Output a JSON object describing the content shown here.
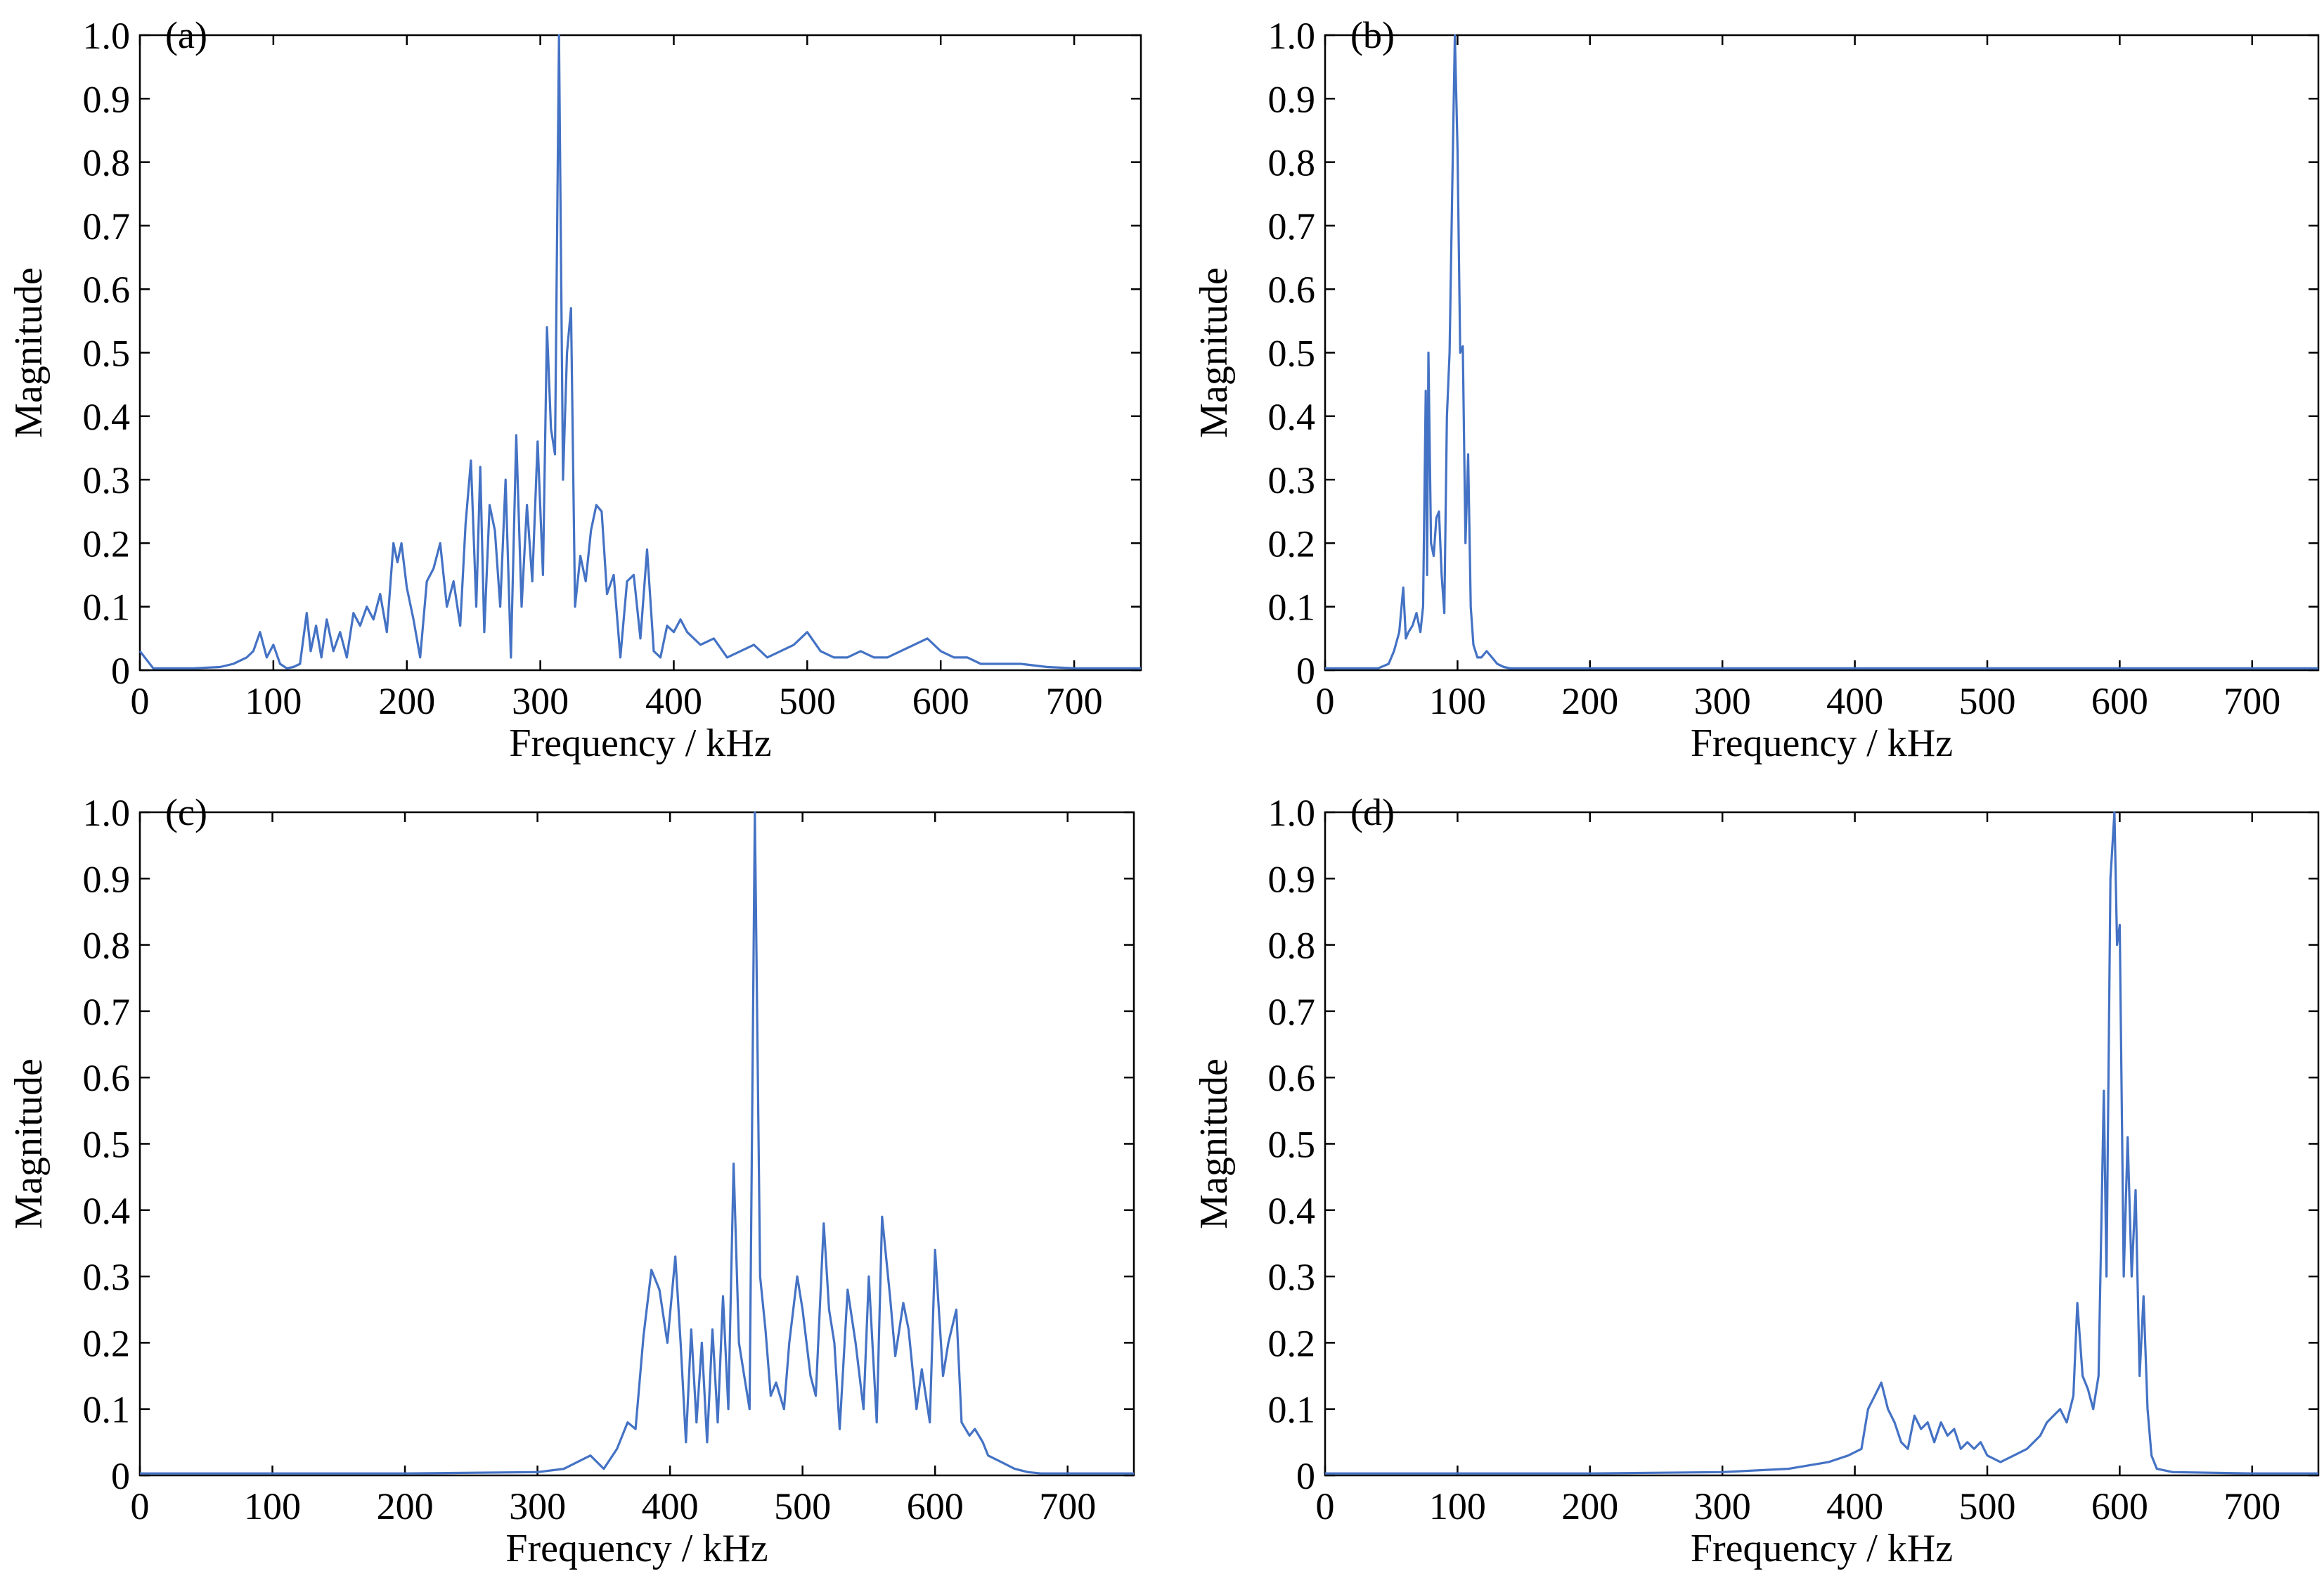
{
  "chart_data": [
    {
      "type": "line",
      "panel_label": "(a)",
      "xlabel": "Frequency / kHz",
      "ylabel": "Magnitude",
      "xlim": [
        0,
        750
      ],
      "ylim": [
        0,
        1.0
      ],
      "x_ticks": [
        0,
        100,
        200,
        300,
        400,
        500,
        600,
        700
      ],
      "y_ticks": [
        "0",
        "0.1",
        "0.2",
        "0.3",
        "0.4",
        "0.5",
        "0.6",
        "0.7",
        "0.8",
        "0.9",
        "1.0"
      ],
      "grid": false,
      "line_color": "#4472c4",
      "x": [
        0,
        10,
        20,
        40,
        60,
        70,
        80,
        85,
        90,
        95,
        100,
        105,
        110,
        115,
        120,
        125,
        128,
        132,
        136,
        140,
        145,
        150,
        155,
        160,
        165,
        170,
        175,
        180,
        185,
        190,
        193,
        196,
        200,
        205,
        210,
        215,
        220,
        225,
        230,
        235,
        240,
        244,
        248,
        252,
        255,
        258,
        262,
        266,
        270,
        274,
        278,
        282,
        286,
        290,
        294,
        298,
        302,
        305,
        308,
        311,
        314,
        317,
        320,
        323,
        326,
        330,
        334,
        338,
        342,
        346,
        350,
        355,
        360,
        365,
        370,
        375,
        380,
        385,
        390,
        395,
        400,
        405,
        410,
        420,
        430,
        440,
        450,
        460,
        470,
        480,
        490,
        500,
        510,
        520,
        530,
        540,
        550,
        560,
        570,
        580,
        590,
        600,
        610,
        620,
        630,
        640,
        660,
        680,
        700,
        720,
        750
      ],
      "y": [
        0.03,
        0.003,
        0.003,
        0.003,
        0.005,
        0.01,
        0.02,
        0.03,
        0.06,
        0.02,
        0.04,
        0.01,
        0.003,
        0.005,
        0.01,
        0.09,
        0.03,
        0.07,
        0.02,
        0.08,
        0.03,
        0.06,
        0.02,
        0.09,
        0.07,
        0.1,
        0.08,
        0.12,
        0.06,
        0.2,
        0.17,
        0.2,
        0.13,
        0.08,
        0.02,
        0.14,
        0.16,
        0.2,
        0.1,
        0.14,
        0.07,
        0.23,
        0.33,
        0.1,
        0.32,
        0.06,
        0.26,
        0.22,
        0.1,
        0.3,
        0.02,
        0.37,
        0.1,
        0.26,
        0.14,
        0.36,
        0.15,
        0.54,
        0.38,
        0.34,
        1.0,
        0.3,
        0.5,
        0.57,
        0.1,
        0.18,
        0.14,
        0.22,
        0.26,
        0.25,
        0.12,
        0.15,
        0.02,
        0.14,
        0.15,
        0.05,
        0.19,
        0.03,
        0.02,
        0.07,
        0.06,
        0.08,
        0.06,
        0.04,
        0.05,
        0.02,
        0.03,
        0.04,
        0.02,
        0.03,
        0.04,
        0.06,
        0.03,
        0.02,
        0.02,
        0.03,
        0.02,
        0.02,
        0.03,
        0.04,
        0.05,
        0.03,
        0.02,
        0.02,
        0.01,
        0.01,
        0.01,
        0.005,
        0.003,
        0.003,
        0.003
      ]
    },
    {
      "type": "line",
      "panel_label": "(b)",
      "xlabel": "Frequency / kHz",
      "ylabel": "Magnitude",
      "xlim": [
        0,
        750
      ],
      "ylim": [
        0,
        1.0
      ],
      "x_ticks": [
        0,
        100,
        200,
        300,
        400,
        500,
        600,
        700
      ],
      "y_ticks": [
        "0",
        "0.1",
        "0.2",
        "0.3",
        "0.4",
        "0.5",
        "0.6",
        "0.7",
        "0.8",
        "0.9",
        "1.0"
      ],
      "grid": false,
      "line_color": "#4472c4",
      "x": [
        0,
        40,
        48,
        52,
        56,
        59,
        61,
        63,
        66,
        69,
        72,
        74,
        76,
        77,
        78,
        80,
        82,
        84,
        86,
        88,
        90,
        92,
        94,
        96,
        98,
        100,
        102,
        104,
        106,
        108,
        110,
        112,
        115,
        118,
        122,
        126,
        130,
        135,
        140,
        150,
        200,
        300,
        400,
        500,
        600,
        700,
        750
      ],
      "y": [
        0.003,
        0.003,
        0.01,
        0.03,
        0.06,
        0.13,
        0.05,
        0.06,
        0.07,
        0.09,
        0.06,
        0.1,
        0.44,
        0.15,
        0.5,
        0.2,
        0.18,
        0.24,
        0.25,
        0.15,
        0.09,
        0.4,
        0.5,
        0.76,
        1.0,
        0.82,
        0.5,
        0.51,
        0.2,
        0.34,
        0.1,
        0.04,
        0.02,
        0.02,
        0.03,
        0.02,
        0.01,
        0.005,
        0.003,
        0.003,
        0.003,
        0.003,
        0.003,
        0.003,
        0.003,
        0.003,
        0.003
      ]
    },
    {
      "type": "line",
      "panel_label": "(c)",
      "xlabel": "Frequency / kHz",
      "ylabel": "Magnitude",
      "xlim": [
        0,
        750
      ],
      "ylim": [
        0,
        1.0
      ],
      "x_ticks": [
        0,
        100,
        200,
        300,
        400,
        500,
        600,
        700
      ],
      "y_ticks": [
        "0",
        "0.1",
        "0.2",
        "0.3",
        "0.4",
        "0.5",
        "0.6",
        "0.7",
        "0.8",
        "0.9",
        "1.0"
      ],
      "grid": false,
      "line_color": "#4472c4",
      "x": [
        0,
        100,
        200,
        300,
        320,
        330,
        340,
        350,
        360,
        368,
        374,
        380,
        386,
        392,
        398,
        404,
        408,
        412,
        416,
        420,
        424,
        428,
        432,
        436,
        440,
        444,
        448,
        452,
        456,
        460,
        464,
        468,
        472,
        476,
        480,
        486,
        490,
        496,
        500,
        506,
        510,
        516,
        520,
        524,
        528,
        534,
        540,
        546,
        550,
        556,
        560,
        566,
        570,
        576,
        580,
        586,
        590,
        596,
        600,
        606,
        610,
        616,
        620,
        626,
        630,
        636,
        640,
        650,
        660,
        670,
        680,
        690,
        700,
        720,
        750
      ],
      "y": [
        0.003,
        0.003,
        0.003,
        0.005,
        0.01,
        0.02,
        0.03,
        0.01,
        0.04,
        0.08,
        0.07,
        0.21,
        0.31,
        0.28,
        0.2,
        0.33,
        0.2,
        0.05,
        0.22,
        0.08,
        0.2,
        0.05,
        0.22,
        0.08,
        0.27,
        0.1,
        0.47,
        0.2,
        0.15,
        0.1,
        1.0,
        0.3,
        0.22,
        0.12,
        0.14,
        0.1,
        0.2,
        0.3,
        0.25,
        0.15,
        0.12,
        0.38,
        0.25,
        0.2,
        0.07,
        0.28,
        0.2,
        0.1,
        0.3,
        0.08,
        0.39,
        0.27,
        0.18,
        0.26,
        0.22,
        0.1,
        0.16,
        0.08,
        0.34,
        0.15,
        0.2,
        0.25,
        0.08,
        0.06,
        0.07,
        0.05,
        0.03,
        0.02,
        0.01,
        0.005,
        0.003,
        0.003,
        0.003,
        0.003,
        0.003
      ]
    },
    {
      "type": "line",
      "panel_label": "(d)",
      "xlabel": "Frequency / kHz",
      "ylabel": "Magnitude",
      "xlim": [
        0,
        750
      ],
      "ylim": [
        0,
        1.0
      ],
      "x_ticks": [
        0,
        100,
        200,
        300,
        400,
        500,
        600,
        700
      ],
      "y_ticks": [
        "0",
        "0.1",
        "0.2",
        "0.3",
        "0.4",
        "0.5",
        "0.6",
        "0.7",
        "0.8",
        "0.9",
        "1.0"
      ],
      "grid": false,
      "line_color": "#4472c4",
      "x": [
        0,
        100,
        200,
        300,
        350,
        380,
        395,
        405,
        410,
        415,
        420,
        425,
        430,
        435,
        440,
        445,
        450,
        455,
        460,
        465,
        470,
        475,
        480,
        485,
        490,
        495,
        500,
        510,
        520,
        530,
        540,
        545,
        550,
        555,
        560,
        565,
        568,
        572,
        576,
        580,
        584,
        588,
        590,
        593,
        596,
        598,
        600,
        603,
        606,
        609,
        612,
        615,
        618,
        621,
        624,
        628,
        640,
        700,
        750
      ],
      "y": [
        0.003,
        0.003,
        0.003,
        0.005,
        0.01,
        0.02,
        0.03,
        0.04,
        0.1,
        0.12,
        0.14,
        0.1,
        0.08,
        0.05,
        0.04,
        0.09,
        0.07,
        0.08,
        0.05,
        0.08,
        0.06,
        0.07,
        0.04,
        0.05,
        0.04,
        0.05,
        0.03,
        0.02,
        0.03,
        0.04,
        0.06,
        0.08,
        0.09,
        0.1,
        0.08,
        0.12,
        0.26,
        0.15,
        0.13,
        0.1,
        0.15,
        0.58,
        0.3,
        0.9,
        1.0,
        0.8,
        0.83,
        0.3,
        0.51,
        0.3,
        0.43,
        0.15,
        0.27,
        0.1,
        0.03,
        0.01,
        0.005,
        0.003,
        0.003
      ]
    }
  ]
}
